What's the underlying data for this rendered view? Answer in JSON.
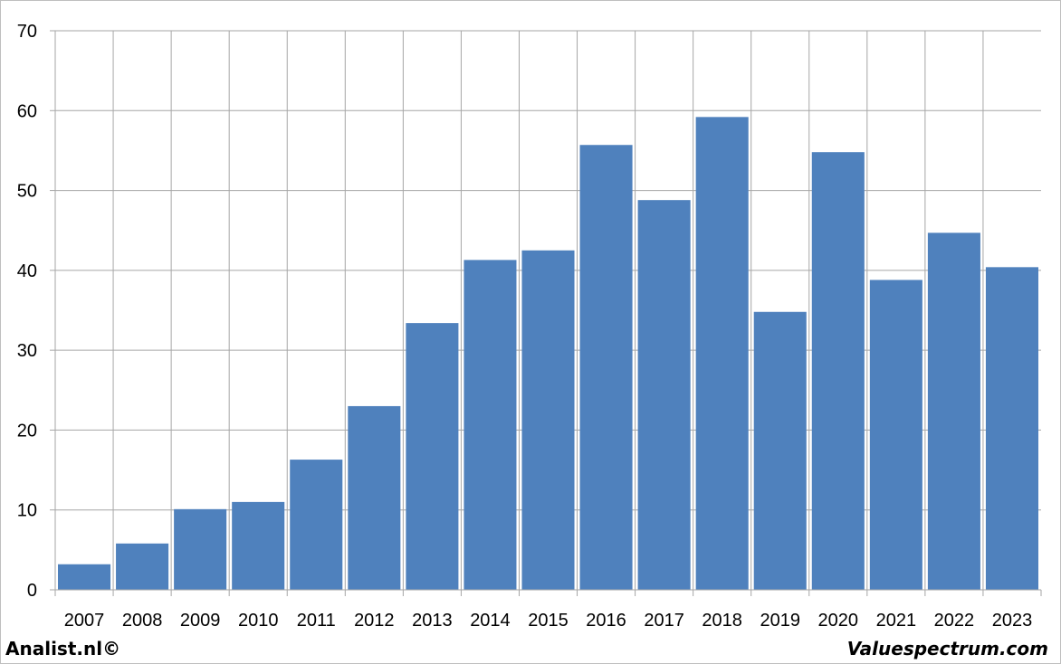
{
  "chart_data": {
    "type": "bar",
    "title": "",
    "xlabel": "",
    "ylabel": "",
    "categories": [
      "2007",
      "2008",
      "2009",
      "2010",
      "2011",
      "2012",
      "2013",
      "2014",
      "2015",
      "2016",
      "2017",
      "2018",
      "2019",
      "2020",
      "2021",
      "2022",
      "2023"
    ],
    "values": [
      3.2,
      5.8,
      10.1,
      11.0,
      16.3,
      23.0,
      33.4,
      41.3,
      42.5,
      55.7,
      48.8,
      59.2,
      34.8,
      54.8,
      38.8,
      44.7,
      40.4
    ],
    "ylim": [
      0,
      70
    ],
    "yticks": [
      "0",
      "10",
      "20",
      "30",
      "40",
      "50",
      "60",
      "70"
    ],
    "grid": true,
    "bar_color": "#4f81bd",
    "grid_color": "#a6a6a6"
  },
  "footer": {
    "left": "Analist.nl©",
    "right": "Valuespectrum.com"
  }
}
